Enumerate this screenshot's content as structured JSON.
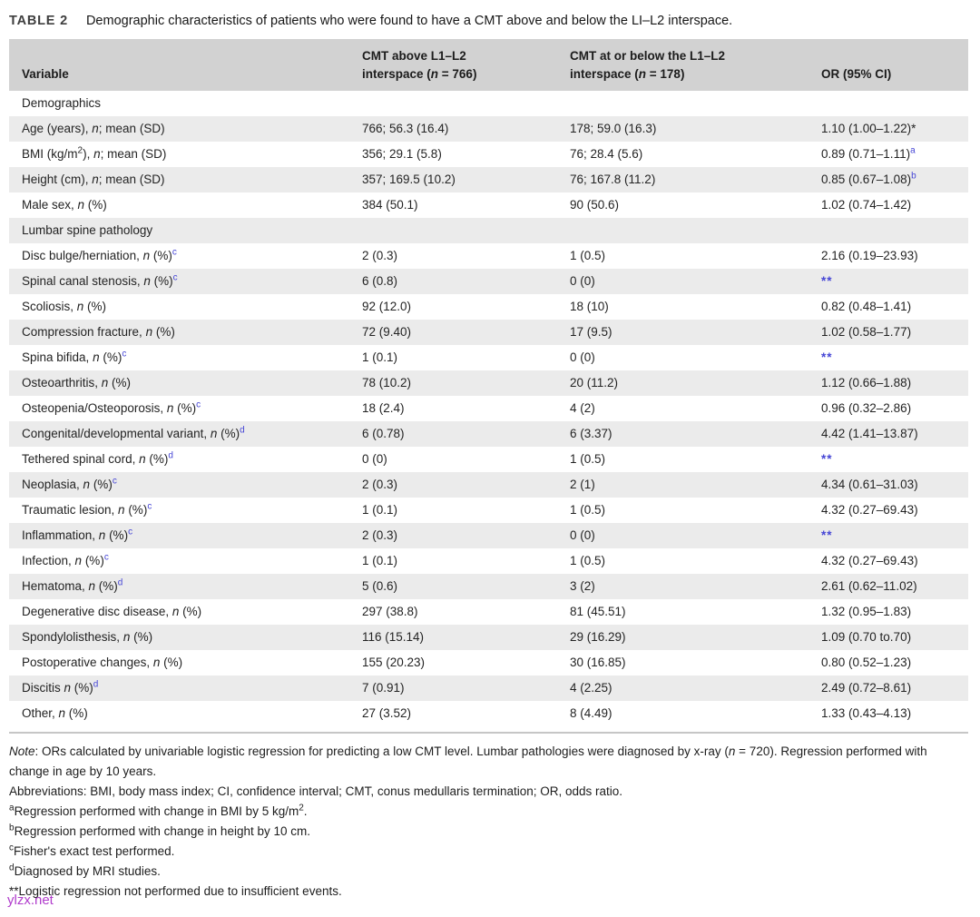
{
  "title": {
    "tag": "TABLE 2",
    "caption": "Demographic characteristics of patients who were found to have a CMT above and below the LI–L2 interspace."
  },
  "colors": {
    "accent_blue": "#4545d5",
    "header_bg": "#d2d2d2",
    "stripe_bg": "#ebebeb",
    "watermark_magenta": "#b03ccc"
  },
  "table": {
    "headers": [
      "Variable",
      "CMT above L1–L2{br}interspace ({i}n{/i} = 766)",
      "CMT at or below the L1–L2{br}interspace ({i}n{/i} = 178)",
      "OR (95% CI)"
    ],
    "rows": [
      {
        "section": true,
        "label": "Demographics",
        "c1": "",
        "c2": "",
        "or": ""
      },
      {
        "section": false,
        "label": "Age (years), {i}n{/i}; mean (SD)",
        "c1": "766; 56.3 (16.4)",
        "c2": "178; 59.0 (16.3)",
        "or": "1.10 (1.00–1.22)*"
      },
      {
        "section": false,
        "label": "BMI (kg/m{u}2{/u}), {i}n{/i}; mean (SD)",
        "c1": "356; 29.1 (5.8)",
        "c2": "76; 28.4 (5.6)",
        "or": "0.89 (0.71–1.11){s}a{/s}"
      },
      {
        "section": false,
        "label": "Height (cm), {i}n{/i}; mean (SD)",
        "c1": "357; 169.5 (10.2)",
        "c2": "76; 167.8 (11.2)",
        "or": "0.85 (0.67–1.08){s}b{/s}"
      },
      {
        "section": false,
        "label": "Male sex, {i}n{/i} (%)",
        "c1": "384 (50.1)",
        "c2": "90 (50.6)",
        "or": "1.02 (0.74–1.42)"
      },
      {
        "section": true,
        "label": "Lumbar spine pathology",
        "c1": "",
        "c2": "",
        "or": ""
      },
      {
        "section": false,
        "label": "Disc bulge/herniation, {i}n{/i} (%){s}c{/s}",
        "c1": "2 (0.3)",
        "c2": "1 (0.5)",
        "or": "2.16 (0.19–23.93)"
      },
      {
        "section": false,
        "label": "Spinal canal stenosis, {i}n{/i} (%){s}c{/s}",
        "c1": "6 (0.8)",
        "c2": "0 (0)",
        "or": "{b}**{/b}"
      },
      {
        "section": false,
        "label": "Scoliosis, {i}n{/i} (%)",
        "c1": "92 (12.0)",
        "c2": "18 (10)",
        "or": "0.82 (0.48–1.41)"
      },
      {
        "section": false,
        "label": "Compression fracture, {i}n{/i} (%)",
        "c1": "72 (9.40)",
        "c2": "17 (9.5)",
        "or": "1.02 (0.58–1.77)"
      },
      {
        "section": false,
        "label": "Spina bifida, {i}n{/i} (%){s}c{/s}",
        "c1": "1 (0.1)",
        "c2": "0 (0)",
        "or": "{b}**{/b}"
      },
      {
        "section": false,
        "label": "Osteoarthritis, {i}n{/i} (%)",
        "c1": "78 (10.2)",
        "c2": "20 (11.2)",
        "or": "1.12 (0.66–1.88)"
      },
      {
        "section": false,
        "label": "Osteopenia/Osteoporosis, {i}n{/i} (%){s}c{/s}",
        "c1": "18 (2.4)",
        "c2": "4 (2)",
        "or": "0.96 (0.32–2.86)"
      },
      {
        "section": false,
        "label": "Congenital/developmental variant, {i}n{/i} (%){s}d{/s}",
        "c1": "6 (0.78)",
        "c2": "6 (3.37)",
        "or": "4.42 (1.41–13.87)"
      },
      {
        "section": false,
        "label": "Tethered spinal cord, {i}n{/i} (%){s}d{/s}",
        "c1": "0 (0)",
        "c2": "1 (0.5)",
        "or": "{b}**{/b}"
      },
      {
        "section": false,
        "label": "Neoplasia, {i}n{/i} (%){s}c{/s}",
        "c1": "2 (0.3)",
        "c2": "2 (1)",
        "or": "4.34 (0.61–31.03)"
      },
      {
        "section": false,
        "label": "Traumatic lesion, {i}n{/i} (%){s}c{/s}",
        "c1": "1 (0.1)",
        "c2": "1 (0.5)",
        "or": "4.32 (0.27–69.43)"
      },
      {
        "section": false,
        "label": "Inflammation, {i}n{/i} (%){s}c{/s}",
        "c1": "2 (0.3)",
        "c2": "0 (0)",
        "or": "{b}**{/b}"
      },
      {
        "section": false,
        "label": "Infection, {i}n{/i} (%){s}c{/s}",
        "c1": "1 (0.1)",
        "c2": "1 (0.5)",
        "or": "4.32 (0.27–69.43)"
      },
      {
        "section": false,
        "label": "Hematoma, {i}n{/i} (%){s}d{/s}",
        "c1": "5 (0.6)",
        "c2": "3 (2)",
        "or": "2.61 (0.62–11.02)"
      },
      {
        "section": false,
        "label": "Degenerative disc disease, {i}n{/i} (%)",
        "c1": "297 (38.8)",
        "c2": "81 (45.51)",
        "or": "1.32 (0.95–1.83)"
      },
      {
        "section": false,
        "label": "Spondylolisthesis, {i}n{/i} (%)",
        "c1": "116 (15.14)",
        "c2": "29 (16.29)",
        "or": "1.09 (0.70 to.70)"
      },
      {
        "section": false,
        "label": "Postoperative changes, {i}n{/i} (%)",
        "c1": "155 (20.23)",
        "c2": "30 (16.85)",
        "or": "0.80 (0.52–1.23)"
      },
      {
        "section": false,
        "label": "Discitis {i}n{/i} (%){s}d{/s}",
        "c1": "7 (0.91)",
        "c2": "4 (2.25)",
        "or": "2.49 (0.72–8.61)"
      },
      {
        "section": false,
        "label": "Other, {i}n{/i} (%)",
        "c1": "27 (3.52)",
        "c2": "8 (4.49)",
        "or": "1.33 (0.43–4.13)"
      }
    ]
  },
  "footnotes": [
    "{i}Note{/i}: ORs calculated by univariable logistic regression for predicting a low CMT level. Lumbar pathologies were diagnosed by x-ray ({i}n{/i} = 720). Regression performed with change in age by 10 years.",
    "Abbreviations: BMI, body mass index; CI, confidence interval; CMT, conus medullaris termination; OR, odds ratio.",
    "{u}a{/u}Regression performed with change in BMI by 5 kg/m{u}2{/u}.",
    "{u}b{/u}Regression performed with change in height by 10 cm.",
    "{u}c{/u}Fisher's exact test performed.",
    "{u}d{/u}Diagnosed by MRI studies.",
    "**Logistic regression not performed due to insufficient events."
  ],
  "watermark": {
    "text": "ylzx.net"
  }
}
